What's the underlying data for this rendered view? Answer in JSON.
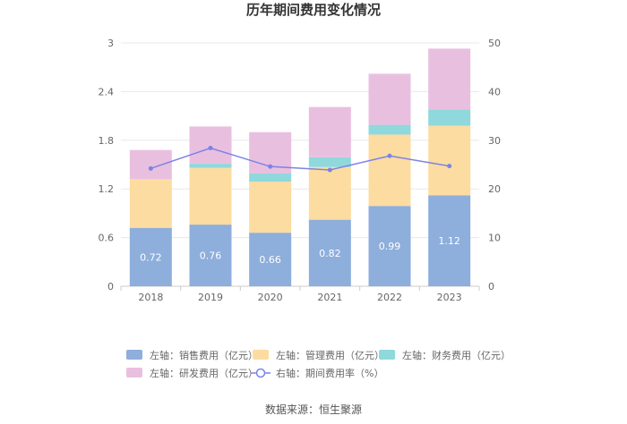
{
  "chart_data": {
    "type": "bar",
    "title": "历年期间费用变化情况",
    "categories": [
      "2018",
      "2019",
      "2020",
      "2021",
      "2022",
      "2023"
    ],
    "stacked": true,
    "left_axis": {
      "ylim": [
        0,
        3
      ],
      "ticks": [
        "0",
        "0.6",
        "1.2",
        "1.8",
        "2.4",
        "3"
      ]
    },
    "right_axis": {
      "ylim": [
        0,
        50
      ],
      "ticks": [
        "0",
        "10",
        "20",
        "30",
        "40",
        "50"
      ]
    },
    "grid": true,
    "legend_position": "bottom",
    "series": [
      {
        "name": "左轴：销售费用（亿元）",
        "axis": "left",
        "type": "bar",
        "color": "#8eaedb",
        "values": [
          0.72,
          0.76,
          0.66,
          0.82,
          0.99,
          1.12
        ],
        "show_labels": true
      },
      {
        "name": "左轴：管理费用（亿元）",
        "axis": "left",
        "type": "bar",
        "color": "#fcdca0",
        "values": [
          0.6,
          0.7,
          0.63,
          0.65,
          0.88,
          0.86
        ]
      },
      {
        "name": "左轴：财务费用（亿元）",
        "axis": "left",
        "type": "bar",
        "color": "#8fd8dc",
        "values": [
          0.0,
          0.05,
          0.1,
          0.12,
          0.12,
          0.2
        ]
      },
      {
        "name": "左轴：研发费用（亿元）",
        "axis": "left",
        "type": "bar",
        "color": "#e9bfdf",
        "values": [
          0.36,
          0.46,
          0.51,
          0.62,
          0.63,
          0.75
        ]
      },
      {
        "name": "右轴：期间费用率（%）",
        "axis": "right",
        "type": "line",
        "color": "#7b83e6",
        "values": [
          24.2,
          28.4,
          24.6,
          23.9,
          26.8,
          24.7
        ]
      }
    ]
  },
  "source": "数据来源：恒生聚源"
}
